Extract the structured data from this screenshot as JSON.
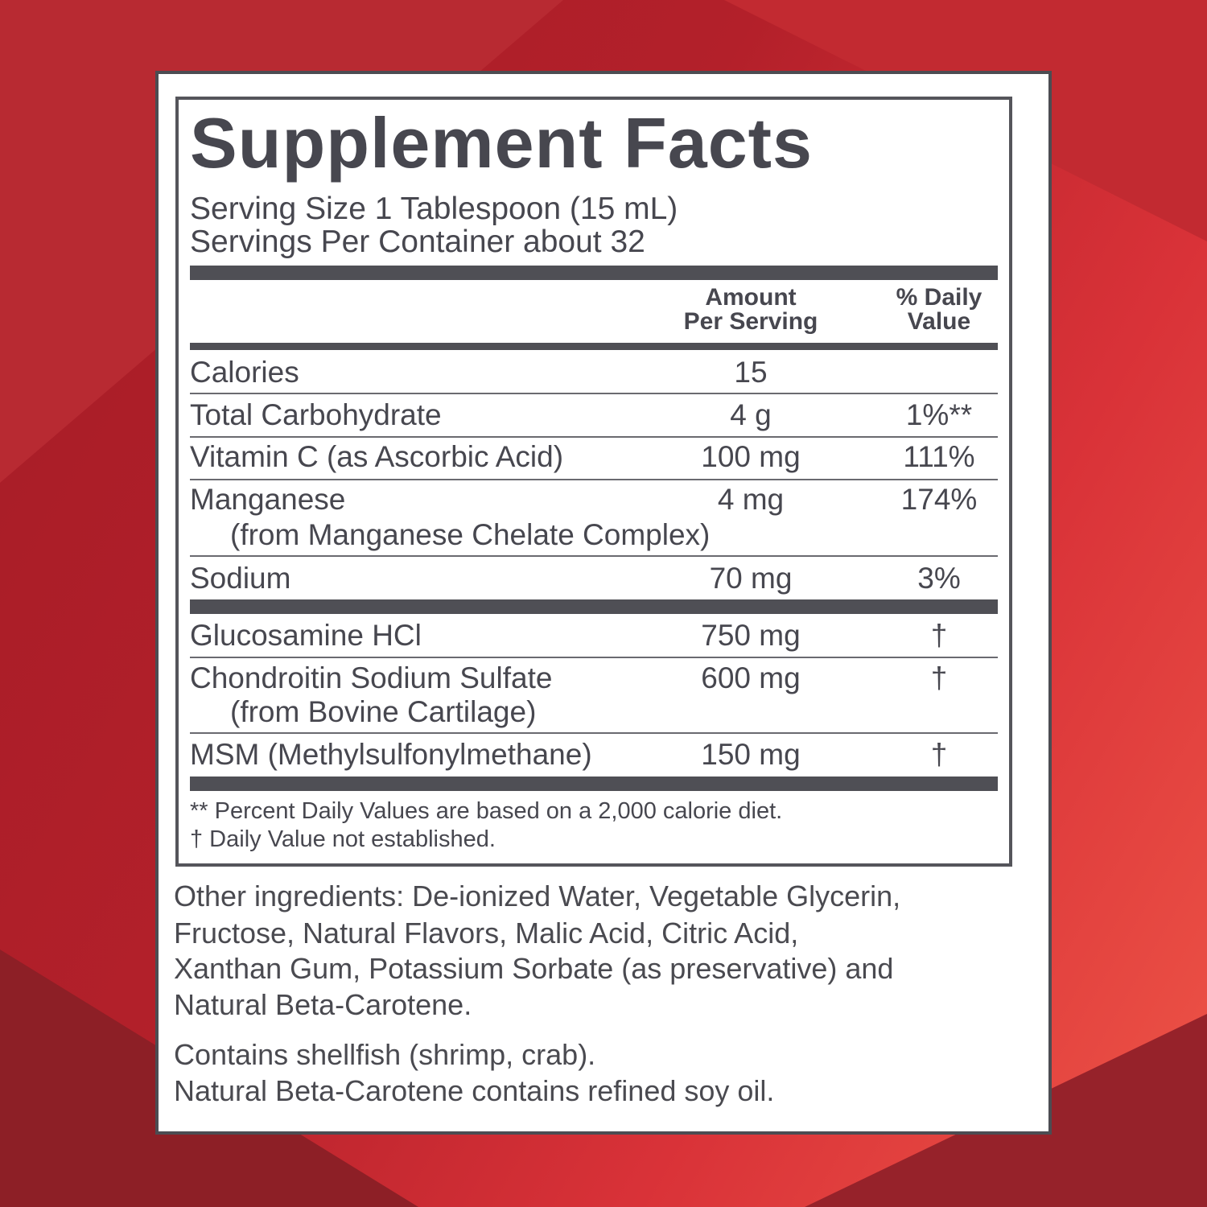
{
  "title": "Supplement Facts",
  "serving_size": "Serving Size 1 Tablespoon (15 mL)",
  "servings_per_container": "Servings Per Container about 32",
  "headers": {
    "amount_line1": "Amount",
    "amount_line2": "Per Serving",
    "dv_line1": "% Daily",
    "dv_line2": "Value"
  },
  "rows": [
    {
      "name": "Calories",
      "amount": "15",
      "dv": ""
    },
    {
      "name": "Total Carbohydrate",
      "amount": "4 g",
      "dv": "1%**"
    },
    {
      "name": "Vitamin C (as Ascorbic Acid)",
      "amount": "100 mg",
      "dv": "111%"
    },
    {
      "name": "Manganese",
      "sub": "(from Manganese Chelate Complex)",
      "amount": "4 mg",
      "dv": "174%"
    },
    {
      "name": "Sodium",
      "amount": "70 mg",
      "dv": "3%"
    },
    {
      "name": "Glucosamine HCl",
      "amount": "750 mg",
      "dv": "†"
    },
    {
      "name": "Chondroitin Sodium Sulfate",
      "sub": "(from Bovine Cartilage)",
      "amount": "600 mg",
      "dv": "†"
    },
    {
      "name": "MSM (Methylsulfonylmethane)",
      "amount": "150 mg",
      "dv": "†"
    }
  ],
  "footnotes": [
    "** Percent Daily Values are based on a 2,000 calorie diet.",
    "† Daily Value not established."
  ],
  "other_ingredients": [
    "Other ingredients: De-ionized Water, Vegetable Glycerin,",
    "Fructose, Natural Flavors, Malic Acid, Citric Acid,",
    "Xanthan Gum, Potassium Sorbate (as preservative) and",
    "Natural Beta-Carotene."
  ],
  "allergens": [
    "Contains shellfish (shrimp, crab).",
    "Natural Beta-Carotene contains refined soy oil."
  ]
}
